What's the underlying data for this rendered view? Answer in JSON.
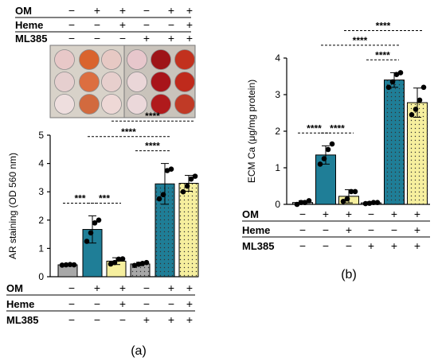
{
  "panel_a": {
    "tag": "(a)",
    "treatment_rows": [
      {
        "label": "OM",
        "signs": [
          "−",
          "+",
          "+",
          "−",
          "+",
          "+"
        ]
      },
      {
        "label": "Heme",
        "signs": [
          "−",
          "−",
          "+",
          "−",
          "−",
          "+"
        ]
      },
      {
        "label": "ML385",
        "signs": [
          "−",
          "−",
          "−",
          "+",
          "+",
          "+"
        ]
      }
    ],
    "photo": {
      "well_colors": [
        [
          "#e8c8c8",
          "#d9642e",
          "#e7c9c4",
          "#e7c7cc",
          "#9e1418",
          "#c2311e"
        ],
        [
          "#e6cfcf",
          "#dc6e40",
          "#e7cfcd",
          "#ead6d8",
          "#a8141a",
          "#bf2a1c"
        ],
        [
          "#eedede",
          "#d26a3e",
          "#eed8d6",
          "#ebd8da",
          "#b01a1c",
          "#c03a26"
        ]
      ]
    }
  },
  "panel_b": {
    "tag": "(b)",
    "treatment_rows": [
      {
        "label": "OM",
        "signs": [
          "−",
          "+",
          "+",
          "−",
          "+",
          "+"
        ]
      },
      {
        "label": "Heme",
        "signs": [
          "−",
          "−",
          "+",
          "−",
          "−",
          "+"
        ]
      },
      {
        "label": "ML385",
        "signs": [
          "−",
          "−",
          "−",
          "+",
          "+",
          "+"
        ]
      }
    ]
  },
  "colors": {
    "grey": "#a8a8a8",
    "teal": "#1f7e97",
    "yellow": "#f6ef9e"
  },
  "chart_data": [
    {
      "type": "bar",
      "ylabel": "AR staining (OD 560 nm)",
      "ylim": [
        0,
        5
      ],
      "yticks": [
        "0",
        "1",
        "2",
        "3",
        "4",
        "5"
      ],
      "values": [
        0.42,
        1.67,
        0.55,
        0.45,
        3.28,
        3.3
      ],
      "errors": [
        0.03,
        0.48,
        0.12,
        0.06,
        0.72,
        0.28
      ],
      "points": [
        [
          0.41,
          0.42,
          0.43,
          0.42
        ],
        [
          1.25,
          1.55,
          1.9,
          2.0
        ],
        [
          0.45,
          0.5,
          0.62,
          0.63
        ],
        [
          0.4,
          0.44,
          0.47,
          0.5
        ],
        [
          2.75,
          2.9,
          3.75,
          3.8
        ],
        [
          3.0,
          3.2,
          3.45,
          3.55
        ]
      ],
      "bar_colors": [
        "grey",
        "teal",
        "yellow",
        "grey",
        "teal",
        "yellow"
      ],
      "bar_patterns": [
        "plain",
        "plain",
        "plain",
        "dotted",
        "dotted",
        "dotted"
      ],
      "significance": [
        {
          "from": 0,
          "to": 1,
          "label": "***",
          "y": 2.6
        },
        {
          "from": 1,
          "to": 2,
          "label": "***",
          "y": 2.6
        },
        {
          "from": 3,
          "to": 4,
          "label": "****",
          "y": 4.45
        },
        {
          "from": 1,
          "to": 4,
          "label": "****",
          "y": 4.95
        },
        {
          "from": 2,
          "to": 5,
          "label": "****",
          "y": 5.5
        }
      ]
    },
    {
      "type": "bar",
      "ylabel": "ECM Ca (μg/mg protein)",
      "ylim": [
        0,
        4
      ],
      "yticks": [
        "0",
        "1",
        "2",
        "3",
        "4"
      ],
      "values": [
        0.05,
        1.35,
        0.22,
        0.04,
        3.4,
        2.78
      ],
      "errors": [
        0.05,
        0.25,
        0.18,
        0.03,
        0.2,
        0.4
      ],
      "points": [
        [
          0.0,
          0.05,
          0.05,
          0.1
        ],
        [
          1.1,
          1.25,
          1.5,
          1.65
        ],
        [
          0.08,
          0.15,
          0.35,
          0.35
        ],
        [
          0.02,
          0.03,
          0.05,
          0.05
        ],
        [
          3.2,
          3.35,
          3.55,
          3.6
        ],
        [
          2.45,
          2.6,
          2.85,
          3.2
        ]
      ],
      "bar_colors": [
        "grey",
        "teal",
        "yellow",
        "grey",
        "teal",
        "yellow"
      ],
      "bar_patterns": [
        "plain",
        "plain",
        "plain",
        "dotted",
        "dotted",
        "dotted"
      ],
      "significance": [
        {
          "from": 0,
          "to": 1,
          "label": "****",
          "y": 1.95
        },
        {
          "from": 1,
          "to": 2,
          "label": "****",
          "y": 1.95
        },
        {
          "from": 3,
          "to": 4,
          "label": "****",
          "y": 3.95
        },
        {
          "from": 1,
          "to": 4,
          "label": "****",
          "y": 4.35
        },
        {
          "from": 2,
          "to": 5,
          "label": "****",
          "y": 4.75
        }
      ]
    }
  ]
}
